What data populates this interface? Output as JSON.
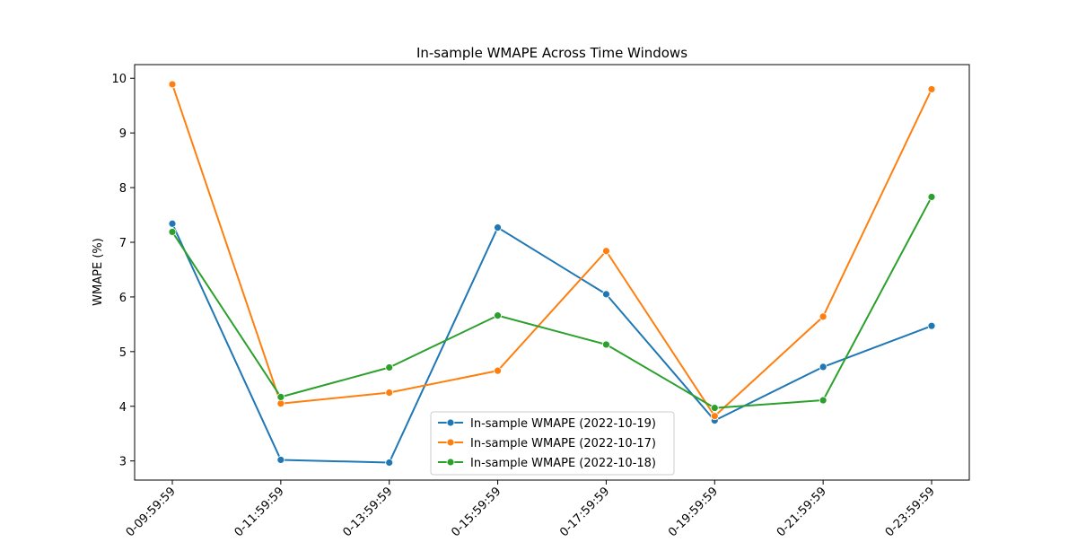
{
  "chart_data": {
    "type": "line",
    "title": "In-sample WMAPE Across Time Windows",
    "xlabel": "",
    "ylabel": "WMAPE (%)",
    "categories": [
      "0-09:59:59",
      "0-11:59:59",
      "0-13:59:59",
      "0-15:59:59",
      "0-17:59:59",
      "0-19:59:59",
      "0-21:59:59",
      "0-23:59:59"
    ],
    "ylim": [
      2.65,
      10.25
    ],
    "yticks": [
      3,
      4,
      5,
      6,
      7,
      8,
      9,
      10
    ],
    "grid": false,
    "legend_position": "lower center",
    "series": [
      {
        "name": "In-sample WMAPE (2022-10-19)",
        "color": "#1f77b4",
        "values": [
          7.34,
          3.02,
          2.97,
          7.27,
          6.05,
          3.74,
          4.72,
          5.47
        ]
      },
      {
        "name": "In-sample WMAPE (2022-10-17)",
        "color": "#ff7f0e",
        "values": [
          9.89,
          4.05,
          4.25,
          4.65,
          6.84,
          3.82,
          5.64,
          9.8
        ]
      },
      {
        "name": "In-sample WMAPE (2022-10-18)",
        "color": "#2ca02c",
        "values": [
          7.19,
          4.17,
          4.71,
          5.66,
          5.13,
          3.97,
          4.11,
          7.83
        ]
      }
    ]
  }
}
